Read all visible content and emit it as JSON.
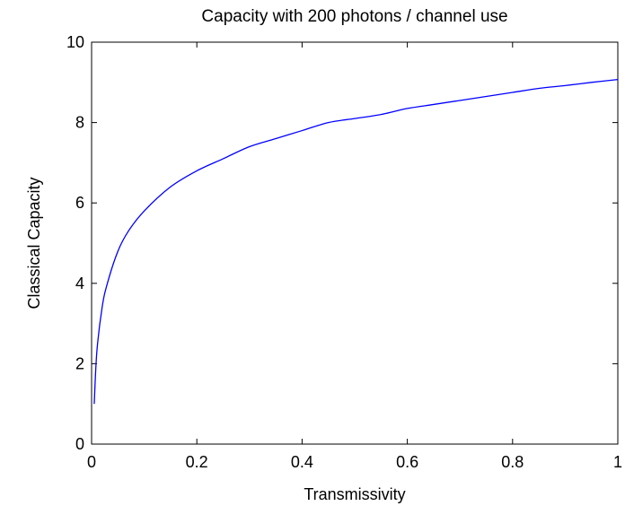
{
  "colors": {
    "background": "#ffffff",
    "axes": "#000000",
    "series_line": "#0000ff"
  },
  "chart_data": {
    "type": "line",
    "title": "Capacity with 200 photons / channel use",
    "xlabel": "Transmissivity",
    "ylabel": "Classical Capacity",
    "xlim": [
      0,
      1
    ],
    "ylim": [
      0,
      10
    ],
    "grid": false,
    "box": true,
    "x_ticks": [
      0,
      0.2,
      0.4,
      0.6,
      0.8,
      1
    ],
    "x_tick_labels": [
      "0",
      "0.2",
      "0.4",
      "0.6",
      "0.8",
      "1"
    ],
    "y_ticks": [
      0,
      2,
      4,
      6,
      8,
      10
    ],
    "y_tick_labels": [
      "0",
      "2",
      "4",
      "6",
      "8",
      "10"
    ],
    "series": [
      {
        "color": "#0000ff",
        "x": [
          0.005,
          0.01,
          0.02,
          0.03,
          0.05,
          0.07,
          0.1,
          0.15,
          0.2,
          0.25,
          0.3,
          0.35,
          0.4,
          0.45,
          0.5,
          0.55,
          0.6,
          0.65,
          0.7,
          0.75,
          0.8,
          0.85,
          0.9,
          0.95,
          1.0
        ],
        "y": [
          1.0,
          2.3,
          3.4,
          4.0,
          4.8,
          5.3,
          5.8,
          6.4,
          6.8,
          7.1,
          7.4,
          7.6,
          7.8,
          8.0,
          8.1,
          8.2,
          8.35,
          8.45,
          8.55,
          8.65,
          8.75,
          8.85,
          8.92,
          9.0,
          9.07
        ]
      }
    ]
  }
}
